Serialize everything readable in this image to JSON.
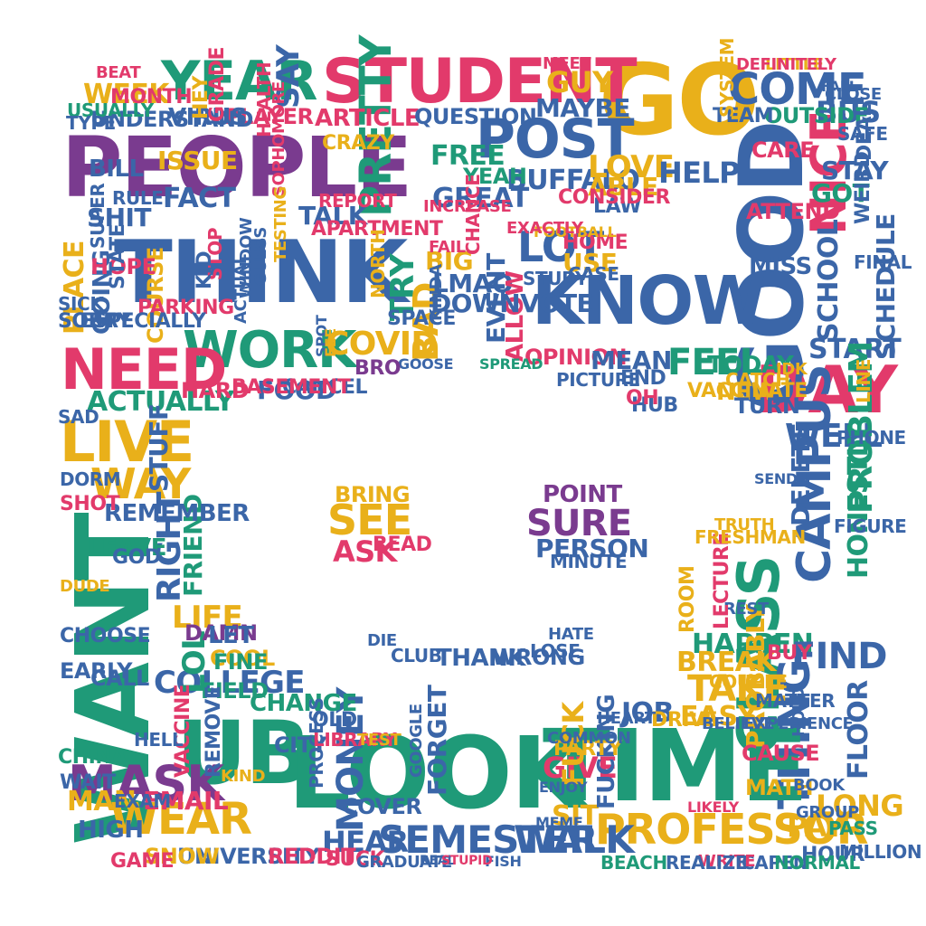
{
  "palette": [
    "#7a3b8f",
    "#e23a6b",
    "#1f9a78",
    "#3b66a8",
    "#e9b01a"
  ],
  "words": [
    {
      "t": "PEOPLE",
      "c": 0
    },
    {
      "t": "THINK",
      "c": 3
    },
    {
      "t": "GO",
      "c": 4
    },
    {
      "t": "GOOD",
      "c": 3
    },
    {
      "t": "STUDENT",
      "c": 1
    },
    {
      "t": "YEAR",
      "c": 2
    },
    {
      "t": "KNOW",
      "c": 3
    },
    {
      "t": "POST",
      "c": 3
    },
    {
      "t": "COME",
      "c": 3
    },
    {
      "t": "NICE",
      "c": 1
    },
    {
      "t": "DAY",
      "c": 1
    },
    {
      "t": "WORK",
      "c": 2
    },
    {
      "t": "NEED",
      "c": 1
    },
    {
      "t": "WANT",
      "c": 2
    },
    {
      "t": "LIVE",
      "c": 4
    },
    {
      "t": "WAY",
      "c": 4
    },
    {
      "t": "CLASS",
      "c": 2
    },
    {
      "t": "CAMPUS",
      "c": 3
    },
    {
      "t": "THING",
      "c": 3
    },
    {
      "t": "UB",
      "c": 2
    },
    {
      "t": "LOOK",
      "c": 2
    },
    {
      "t": "TIME",
      "c": 2
    },
    {
      "t": "MASK",
      "c": 0
    },
    {
      "t": "WEAR",
      "c": 4
    },
    {
      "t": "PROFESSOR",
      "c": 4
    },
    {
      "t": "SEMESTER",
      "c": 3
    },
    {
      "t": "WALK",
      "c": 3
    },
    {
      "t": "COVID",
      "c": 4
    },
    {
      "t": "LOT",
      "c": 3
    },
    {
      "t": "SEE",
      "c": 4
    },
    {
      "t": "SURE",
      "c": 0
    },
    {
      "t": "SCHOOL",
      "c": 3
    },
    {
      "t": "FEEL",
      "c": 2
    },
    {
      "t": "TRY",
      "c": 2
    },
    {
      "t": "PRETTY",
      "c": 2
    },
    {
      "t": "SAY",
      "c": 3
    },
    {
      "t": "WEEK",
      "c": 4
    },
    {
      "t": "MONEY",
      "c": 3
    },
    {
      "t": "COLLEGE",
      "c": 3
    },
    {
      "t": "LOL",
      "c": 2
    },
    {
      "t": "RIGHT",
      "c": 3
    },
    {
      "t": "FRIEND",
      "c": 2
    },
    {
      "t": "TAKE",
      "c": 4
    },
    {
      "t": "HAPPEN",
      "c": 2
    },
    {
      "t": "FIND",
      "c": 3
    },
    {
      "t": "BREAK",
      "c": 4
    },
    {
      "t": "LIFE",
      "c": 4
    },
    {
      "t": "PLACE",
      "c": 4
    },
    {
      "t": "GOING",
      "c": 3
    },
    {
      "t": "ACTUALLY",
      "c": 2
    },
    {
      "t": "BAD",
      "c": 4
    },
    {
      "t": "BIG",
      "c": 4
    },
    {
      "t": "LMAO",
      "c": 3
    },
    {
      "t": "GREAT",
      "c": 3
    },
    {
      "t": "BUFFALO",
      "c": 3
    },
    {
      "t": "LOVE",
      "c": 4
    },
    {
      "t": "ABLE",
      "c": 4
    },
    {
      "t": "HELP",
      "c": 3
    },
    {
      "t": "GUY",
      "c": 4
    },
    {
      "t": "MAYBE",
      "c": 3
    },
    {
      "t": "FREE",
      "c": 2
    },
    {
      "t": "YEAH",
      "c": 2
    },
    {
      "t": "TALK",
      "c": 3
    },
    {
      "t": "FACT",
      "c": 3
    },
    {
      "t": "SHIT",
      "c": 3
    },
    {
      "t": "ISSUE",
      "c": 4
    },
    {
      "t": "ARTICLE",
      "c": 1
    },
    {
      "t": "PLAYER",
      "c": 1
    },
    {
      "t": "VIRUS",
      "c": 3
    },
    {
      "t": "UNDERSTAND",
      "c": 3
    },
    {
      "t": "MONTH",
      "c": 1
    },
    {
      "t": "QUESTION",
      "c": 3
    },
    {
      "t": "USE",
      "c": 4
    },
    {
      "t": "HOME",
      "c": 1
    },
    {
      "t": "CASE",
      "c": 3
    },
    {
      "t": "STUDY",
      "c": 3
    },
    {
      "t": "ALLOW",
      "c": 1
    },
    {
      "t": "OPINION",
      "c": 1
    },
    {
      "t": "MEAN",
      "c": 3
    },
    {
      "t": "END",
      "c": 3
    },
    {
      "t": "TODAY",
      "c": 2
    },
    {
      "t": "NEW",
      "c": 4
    },
    {
      "t": "TURN",
      "c": 3
    },
    {
      "t": "START",
      "c": 3
    },
    {
      "t": "SCHEDULE",
      "c": 3
    },
    {
      "t": "ATTEND",
      "c": 1
    },
    {
      "t": "GOT",
      "c": 2
    },
    {
      "t": "MISS",
      "c": 3
    },
    {
      "t": "BUS",
      "c": 3
    },
    {
      "t": "OUTSIDE",
      "c": 2
    },
    {
      "t": "TEAM",
      "c": 3
    },
    {
      "t": "CARE",
      "c": 1
    },
    {
      "t": "WELL",
      "c": 3
    },
    {
      "t": "DELETE",
      "c": 3
    },
    {
      "t": "PROBLEM",
      "c": 2
    },
    {
      "t": "HONESTLY",
      "c": 2
    },
    {
      "t": "PROBABLY",
      "c": 4
    },
    {
      "t": "FLOOR",
      "c": 3
    },
    {
      "t": "LONG",
      "c": 4
    },
    {
      "t": "PAY",
      "c": 4
    },
    {
      "t": "HOUR",
      "c": 3
    },
    {
      "t": "CAUSE",
      "c": 1
    },
    {
      "t": "MATH",
      "c": 4
    },
    {
      "t": "STUFF",
      "c": 3
    },
    {
      "t": "REMEMBER",
      "c": 3
    },
    {
      "t": "LEAVE",
      "c": 2
    },
    {
      "t": "DAMN",
      "c": 0
    },
    {
      "t": "FOOD",
      "c": 3
    },
    {
      "t": "HARD",
      "c": 1
    },
    {
      "t": "COURSE",
      "c": 4
    },
    {
      "t": "HOPE",
      "c": 1
    },
    {
      "t": "SUPER",
      "c": 3
    },
    {
      "t": "STATE",
      "c": 3
    },
    {
      "t": "PARKING",
      "c": 1
    },
    {
      "t": "BRING",
      "c": 4
    },
    {
      "t": "ASK",
      "c": 1
    },
    {
      "t": "READ",
      "c": 1
    },
    {
      "t": "POINT",
      "c": 0
    },
    {
      "t": "PERSON",
      "c": 3
    },
    {
      "t": "MINUTE",
      "c": 3
    },
    {
      "t": "THANK",
      "c": 3
    },
    {
      "t": "WRONG",
      "c": 3
    },
    {
      "t": "CLUB",
      "c": 3
    },
    {
      "t": "DIE",
      "c": 3
    },
    {
      "t": "LOSE",
      "c": 3
    },
    {
      "t": "HATE",
      "c": 3
    },
    {
      "t": "JOB",
      "c": 3
    },
    {
      "t": "EASY",
      "c": 4
    },
    {
      "t": "DRIVE",
      "c": 4
    },
    {
      "t": "GIVE",
      "c": 1
    },
    {
      "t": "FUCK",
      "c": 4
    },
    {
      "t": "SIT",
      "c": 4
    },
    {
      "t": "FUCKING",
      "c": 3
    },
    {
      "t": "PARTY",
      "c": 4
    },
    {
      "t": "FORGET",
      "c": 3
    },
    {
      "t": "HEAR",
      "c": 3
    },
    {
      "t": "COVER",
      "c": 3
    },
    {
      "t": "UNIVERSITY",
      "c": 3
    },
    {
      "t": "REDDIT",
      "c": 1
    },
    {
      "t": "SNOW",
      "c": 4
    },
    {
      "t": "SUCK",
      "c": 1
    },
    {
      "t": "CHANGE",
      "c": 2
    },
    {
      "t": "FIELD",
      "c": 2
    },
    {
      "t": "COOL",
      "c": 4
    },
    {
      "t": "EMAIL",
      "c": 1
    },
    {
      "t": "MAN",
      "c": 4
    },
    {
      "t": "HIGH",
      "c": 3
    },
    {
      "t": "CHOOSE",
      "c": 3
    },
    {
      "t": "CALL",
      "c": 3
    },
    {
      "t": "EARLY",
      "c": 3
    },
    {
      "t": "REMOVE",
      "c": 3
    },
    {
      "t": "VACCINE",
      "c": 1
    },
    {
      "t": "OLD",
      "c": 3
    },
    {
      "t": "CITY",
      "c": 3
    },
    {
      "t": "ROOM",
      "c": 4
    },
    {
      "t": "REST",
      "c": 3
    },
    {
      "t": "BUY",
      "c": 1
    },
    {
      "t": "MATTER",
      "c": 3
    },
    {
      "t": "VACCINATE",
      "c": 4
    },
    {
      "t": "CATCH",
      "c": 4
    },
    {
      "t": "HUB",
      "c": 3
    },
    {
      "t": "OH",
      "c": 1
    },
    {
      "t": "REPORT",
      "c": 1
    },
    {
      "t": "APARTMENT",
      "c": 1
    },
    {
      "t": "SOPHOMORE",
      "c": 1
    },
    {
      "t": "HEALTH",
      "c": 1
    },
    {
      "t": "STOP",
      "c": 1
    },
    {
      "t": "KID",
      "c": 3
    },
    {
      "t": "ACTUAL",
      "c": 3
    },
    {
      "t": "CANCEL",
      "c": 3
    },
    {
      "t": "GOOSE",
      "c": 3
    },
    {
      "t": "SPACE",
      "c": 3
    },
    {
      "t": "BRO",
      "c": 0
    },
    {
      "t": "NORTH",
      "c": 4
    },
    {
      "t": "EVENT",
      "c": 3
    },
    {
      "t": "SPREAD",
      "c": 2
    },
    {
      "t": "KINDA",
      "c": 3
    },
    {
      "t": "PICTURE",
      "c": 3
    },
    {
      "t": "CRAZY",
      "c": 4
    },
    {
      "t": "LAW",
      "c": 3
    },
    {
      "t": "CONSIDER",
      "c": 1
    },
    {
      "t": "WEIRD",
      "c": 3
    },
    {
      "t": "STAY",
      "c": 3
    },
    {
      "t": "SYSTEM",
      "c": 4
    },
    {
      "t": "LITTLE",
      "c": 4
    },
    {
      "t": "DEFINITELY",
      "c": 1
    },
    {
      "t": "MEET",
      "c": 1
    },
    {
      "t": "SORRY",
      "c": 3
    },
    {
      "t": "ESPECIALLY",
      "c": 3
    },
    {
      "t": "SICK",
      "c": 3
    },
    {
      "t": "SAD",
      "c": 3
    },
    {
      "t": "DORM",
      "c": 3
    },
    {
      "t": "SHOT",
      "c": 1
    },
    {
      "t": "DUDE",
      "c": 4
    },
    {
      "t": "WAIT",
      "c": 3
    },
    {
      "t": "CHINA",
      "c": 2
    },
    {
      "t": "GAME",
      "c": 1
    },
    {
      "t": "HELL",
      "c": 3
    },
    {
      "t": "EXAM",
      "c": 3
    },
    {
      "t": "GOD",
      "c": 3
    },
    {
      "t": "LET",
      "c": 3
    },
    {
      "t": "FINE",
      "c": 2
    },
    {
      "t": "KIND",
      "c": 4
    },
    {
      "t": "USUALLY",
      "c": 2
    },
    {
      "t": "BEAT",
      "c": 1
    },
    {
      "t": "TYPE",
      "c": 3
    },
    {
      "t": "BILL",
      "c": 3
    },
    {
      "t": "RULE",
      "c": 3
    },
    {
      "t": "HEY",
      "c": 4
    },
    {
      "t": "GRADE",
      "c": 1
    },
    {
      "t": "CHANCE",
      "c": 1
    },
    {
      "t": "FAIL",
      "c": 1
    },
    {
      "t": "FOOTBALL",
      "c": 4
    },
    {
      "t": "EXACTLY",
      "c": 1
    },
    {
      "t": "INCREASE",
      "c": 1
    },
    {
      "t": "GUESS",
      "c": 3
    },
    {
      "t": "TESTING",
      "c": 4
    },
    {
      "t": "WINDOW",
      "c": 3
    },
    {
      "t": "LECTURE",
      "c": 1
    },
    {
      "t": "COUPLE",
      "c": 4
    },
    {
      "t": "FRESHMAN",
      "c": 4
    },
    {
      "t": "LINE",
      "c": 4
    },
    {
      "t": "PHONE",
      "c": 3
    },
    {
      "t": "FIGURE",
      "c": 3
    },
    {
      "t": "SEND",
      "c": 3
    },
    {
      "t": "PASS",
      "c": 2
    },
    {
      "t": "MILLION",
      "c": 3
    },
    {
      "t": "SAFE",
      "c": 3
    },
    {
      "t": "CLOSE",
      "c": 3
    },
    {
      "t": "FALL",
      "c": 3
    },
    {
      "t": "DEAL",
      "c": 3
    },
    {
      "t": "FINAL",
      "c": 3
    },
    {
      "t": "TRUTH",
      "c": 4
    },
    {
      "t": "IDK",
      "c": 4
    },
    {
      "t": "CAPEN",
      "c": 3
    },
    {
      "t": "NORMAL",
      "c": 2
    },
    {
      "t": "WRITE",
      "c": 1
    },
    {
      "t": "BEACH",
      "c": 2
    },
    {
      "t": "REALIZE",
      "c": 3
    },
    {
      "t": "BELIEVE",
      "c": 3
    },
    {
      "t": "EXPERIENCE",
      "c": 3
    },
    {
      "t": "GROUP",
      "c": 3
    },
    {
      "t": "BOOK",
      "c": 3
    },
    {
      "t": "HOLD",
      "c": 3
    },
    {
      "t": "LIKELY",
      "c": 1
    },
    {
      "t": "HEART",
      "c": 3
    },
    {
      "t": "COMMON",
      "c": 3
    },
    {
      "t": "ENJOY",
      "c": 3
    },
    {
      "t": "MEME",
      "c": 3
    },
    {
      "t": "PROCESS",
      "c": 3
    },
    {
      "t": "LIBRARY",
      "c": 1
    },
    {
      "t": "TEST",
      "c": 4
    },
    {
      "t": "GRADUATE",
      "c": 3
    },
    {
      "t": "REAL",
      "c": 3
    },
    {
      "t": "FISH",
      "c": 3
    },
    {
      "t": "STUPID",
      "c": 1
    },
    {
      "t": "GOOGLE",
      "c": 3
    },
    {
      "t": "BASEMENT",
      "c": 1
    },
    {
      "t": "DOWNVOTE",
      "c": 3
    },
    {
      "t": "SPOT",
      "c": 3
    },
    {
      "t": "FEE",
      "c": 4
    },
    {
      "t": "LMAO",
      "c": 3
    },
    {
      "t": "POSITION",
      "c": 3
    },
    {
      "t": "ELLICOTT",
      "c": 3
    }
  ]
}
